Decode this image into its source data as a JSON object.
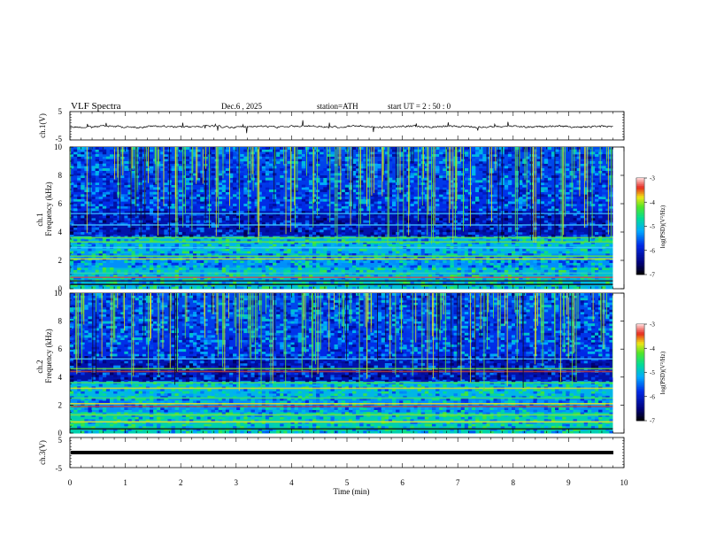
{
  "header": {
    "title": "VLF  Spectra",
    "date": "Dec.6  , 2025",
    "station": "station=ATH",
    "start_ut": "start  UT  =   2  : 50 : 0"
  },
  "chart_data": [
    {
      "type": "line",
      "name": "ch1-waveform",
      "ylabel": "ch.1(V)",
      "ylim": [
        -5,
        5
      ],
      "yticks": [
        "5",
        "-5"
      ],
      "xlim": [
        0,
        10
      ]
    },
    {
      "type": "heatmap",
      "name": "ch1-spectrogram",
      "ylabel_top": "ch.1",
      "ylabel": "Frequency  (kHz)",
      "ylim": [
        0,
        10
      ],
      "yticks": [
        "0",
        "2",
        "4",
        "6",
        "8",
        "10"
      ],
      "xlim": [
        0,
        9.8
      ],
      "colorbar": {
        "label": "log(PSD)(V²/Hz)",
        "range": [
          -7,
          -3
        ],
        "ticks": [
          "-3",
          "-4",
          "-5",
          "-6",
          "-7"
        ]
      },
      "bands_khz": [
        {
          "f": 0.3,
          "c": "#101018"
        },
        {
          "f": 0.55,
          "c": "#202030"
        },
        {
          "f": 0.8,
          "c": "#c85050"
        },
        {
          "f": 1.1,
          "c": "#30d0c0"
        },
        {
          "f": 2.1,
          "c": "#e0e020"
        },
        {
          "f": 2.3,
          "c": "#60e040"
        },
        {
          "f": 2.9,
          "c": "#40d0ff"
        },
        {
          "f": 3.3,
          "c": "#60e040"
        },
        {
          "f": 3.6,
          "c": "#60e040"
        },
        {
          "f": 4.5,
          "c": "#40c0ff"
        },
        {
          "f": 5.3,
          "c": "#30b0ff"
        }
      ]
    },
    {
      "type": "heatmap",
      "name": "ch2-spectrogram",
      "ylabel_top": "ch.2",
      "ylabel": "Frequency  (kHz)",
      "ylim": [
        0,
        10
      ],
      "yticks": [
        "0",
        "2",
        "4",
        "6",
        "8",
        "10"
      ],
      "xlim": [
        0,
        9.8
      ],
      "colorbar": {
        "label": "log(PSD)(V²/Hz)",
        "range": [
          -7,
          -3
        ],
        "ticks": [
          "-3",
          "-4",
          "-5",
          "-6",
          "-7"
        ]
      },
      "bands_khz": [
        {
          "f": 0.3,
          "c": "#101018"
        },
        {
          "f": 0.8,
          "c": "#f0e020"
        },
        {
          "f": 1.3,
          "c": "#80e040"
        },
        {
          "f": 1.9,
          "c": "#c04040"
        },
        {
          "f": 2.1,
          "c": "#f0e020"
        },
        {
          "f": 2.5,
          "c": "#40e060"
        },
        {
          "f": 3.2,
          "c": "#e0e020"
        },
        {
          "f": 3.6,
          "c": "#40e060"
        },
        {
          "f": 4.4,
          "c": "#c04040"
        },
        {
          "f": 4.6,
          "c": "#60e040"
        },
        {
          "f": 5.3,
          "c": "#40c0ff"
        }
      ]
    },
    {
      "type": "line",
      "name": "ch3-waveform",
      "ylabel": "ch.3(V)",
      "ylim": [
        -5,
        5
      ],
      "yticks": [
        "5",
        "-5"
      ],
      "xlim": [
        0,
        10
      ]
    }
  ],
  "x_axis": {
    "label": "Time  (min)",
    "range": [
      0,
      10
    ],
    "ticks": [
      "0",
      "1",
      "2",
      "3",
      "4",
      "5",
      "6",
      "7",
      "8",
      "9",
      "10"
    ]
  }
}
